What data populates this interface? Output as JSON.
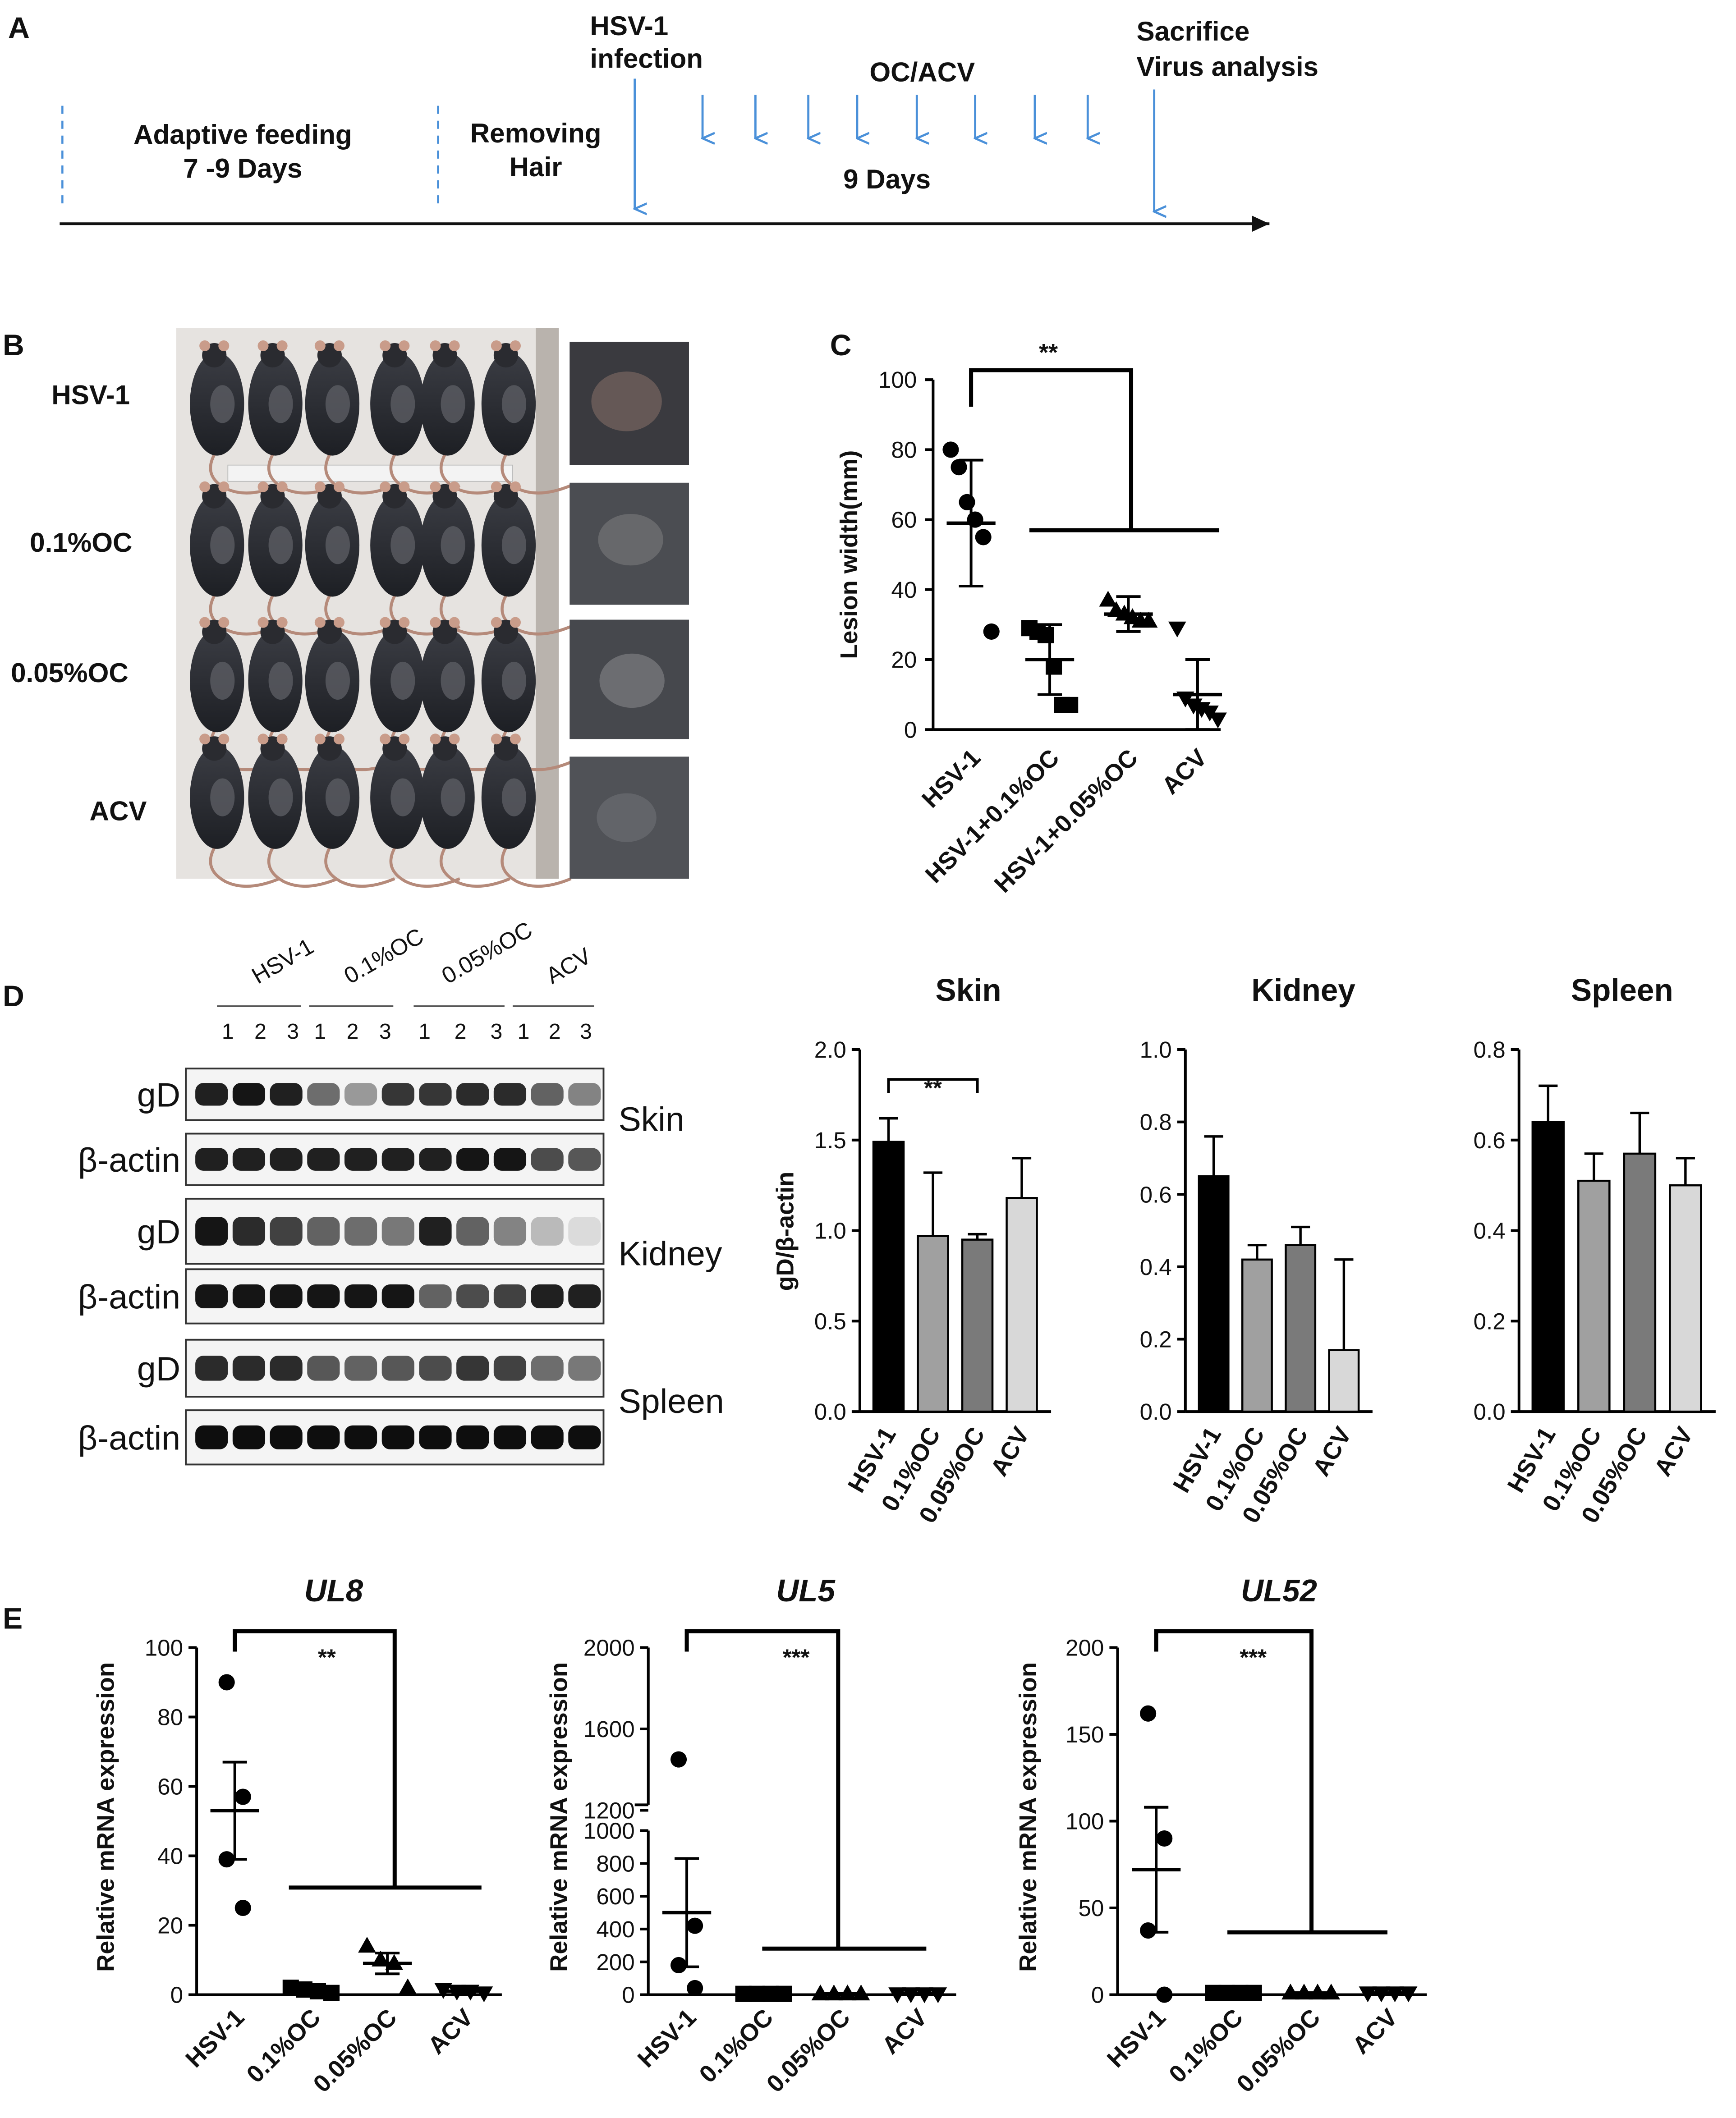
{
  "colors": {
    "accent_arrow": "#4a90d9",
    "bar_black": "#000000",
    "bar_dark_gray": "#7a7a7a",
    "bar_mid_gray": "#a0a0a0",
    "bar_light_gray": "#d8d8d8"
  },
  "panelA": {
    "label": "A",
    "adaptive": "Adaptive feeding",
    "adaptive_days": "7 -9 Days",
    "removing": "Removing",
    "hair": "Hair",
    "infection_1": "HSV-1",
    "infection_2": "infection",
    "treatment": "OC/ACV",
    "duration": "9  Days",
    "sacrifice": "Sacrifice",
    "analysis": "Virus analysis"
  },
  "panelB": {
    "label": "B",
    "groups": [
      "HSV-1",
      "0.1%OC",
      "0.05%OC",
      "ACV"
    ]
  },
  "panelD_blot": {
    "label": "D",
    "group_labels": [
      "HSV-1",
      "0.1%OC",
      "0.05%OC",
      "ACV"
    ],
    "lane_numbers": [
      "1",
      "2",
      "3"
    ],
    "row_labels": [
      "gD",
      "β-actin",
      "gD",
      "β-actin",
      "gD",
      "β-actin"
    ],
    "tissues": [
      "Skin",
      "Kidney",
      "Spleen"
    ]
  },
  "panelC_label": "C",
  "panelE_label": "E",
  "chart_data": [
    {
      "type": "scatter",
      "panel": "C",
      "ylabel": "Lesion width(mm)",
      "categories": [
        "HSV-1",
        "HSV-1+0.1%OC",
        "HSV-1+0.05%OC",
        "ACV"
      ],
      "ylim": [
        0,
        100
      ],
      "yticks": [
        "0",
        "20",
        "40",
        "60",
        "80",
        "100"
      ],
      "points": [
        [
          80,
          75,
          65,
          60,
          55,
          28
        ],
        [
          29,
          28,
          27,
          18,
          7,
          7
        ],
        [
          37,
          34,
          33,
          32,
          31,
          31
        ],
        [
          29,
          9,
          7,
          6,
          5,
          3
        ]
      ],
      "means": [
        59,
        20,
        33,
        10
      ],
      "sds": [
        18,
        10,
        5,
        10
      ],
      "significance": "**"
    },
    {
      "type": "bar",
      "panel": "D",
      "title": "Skin",
      "ylabel": "gD/β-actin",
      "categories": [
        "HSV-1",
        "0.1%OC",
        "0.05%OC",
        "ACV"
      ],
      "values": [
        1.49,
        0.97,
        0.95,
        1.18
      ],
      "errors": [
        0.13,
        0.35,
        0.03,
        0.22
      ],
      "ylim": [
        0,
        2.0
      ],
      "yticks": [
        "0.0",
        "0.5",
        "1.0",
        "1.5",
        "2.0"
      ],
      "significance": "**"
    },
    {
      "type": "bar",
      "panel": "D",
      "title": "Kidney",
      "ylabel": "",
      "categories": [
        "HSV-1",
        "0.1%OC",
        "0.05%OC",
        "ACV"
      ],
      "values": [
        0.65,
        0.42,
        0.46,
        0.17
      ],
      "errors": [
        0.11,
        0.04,
        0.05,
        0.25
      ],
      "ylim": [
        0,
        1.0
      ],
      "yticks": [
        "0.0",
        "0.2",
        "0.4",
        "0.6",
        "0.8",
        "1.0"
      ]
    },
    {
      "type": "bar",
      "panel": "D",
      "title": "Spleen",
      "ylabel": "",
      "categories": [
        "HSV-1",
        "0.1%OC",
        "0.05%OC",
        "ACV"
      ],
      "values": [
        0.64,
        0.51,
        0.57,
        0.5
      ],
      "errors": [
        0.08,
        0.06,
        0.09,
        0.06
      ],
      "ylim": [
        0,
        0.8
      ],
      "yticks": [
        "0.0",
        "0.2",
        "0.4",
        "0.6",
        "0.8"
      ]
    },
    {
      "type": "scatter",
      "panel": "E",
      "title": "UL8",
      "ylabel": "Relative mRNA expression",
      "categories": [
        "HSV-1",
        "0.1%OC",
        "0.05%OC",
        "ACV"
      ],
      "ylim": [
        0,
        100
      ],
      "yticks": [
        "0",
        "20",
        "40",
        "60",
        "80",
        "100"
      ],
      "points": [
        [
          90,
          57,
          39,
          25
        ],
        [
          2,
          1.5,
          1,
          0.5
        ],
        [
          14,
          10,
          9,
          2
        ],
        [
          1.5,
          1,
          1,
          0.5
        ]
      ],
      "means": [
        53,
        1,
        9,
        1
      ],
      "sems": [
        14,
        0.5,
        3,
        0.5
      ],
      "significance": "**"
    },
    {
      "type": "scatter",
      "panel": "E",
      "title": "UL5",
      "ylabel": "Relative mRNA expression",
      "categories": [
        "HSV-1",
        "0.1%OC",
        "0.05%OC",
        "ACV"
      ],
      "ylim": [
        0,
        2000
      ],
      "axis_break": [
        1000,
        1200
      ],
      "yticks": [
        "0",
        "200",
        "400",
        "600",
        "800",
        "1000",
        "1200",
        "1600",
        "2000"
      ],
      "points": [
        [
          1450,
          420,
          180,
          40
        ],
        [
          5,
          5,
          5,
          5
        ],
        [
          5,
          5,
          5,
          5
        ],
        [
          5,
          5,
          5,
          5
        ]
      ],
      "means": [
        500,
        5,
        5,
        5
      ],
      "sems": [
        330,
        0,
        0,
        0
      ],
      "significance": "***"
    },
    {
      "type": "scatter",
      "panel": "E",
      "title": "UL52",
      "ylabel": "Relative mRNA expression",
      "categories": [
        "HSV-1",
        "0.1%OC",
        "0.05%OC",
        "ACV"
      ],
      "ylim": [
        0,
        200
      ],
      "yticks": [
        "0",
        "50",
        "100",
        "150",
        "200"
      ],
      "points": [
        [
          162,
          90,
          37,
          0
        ],
        [
          1,
          1,
          1,
          1
        ],
        [
          1,
          1,
          1,
          1
        ],
        [
          1,
          1,
          1,
          1
        ]
      ],
      "means": [
        72,
        1,
        1,
        1
      ],
      "sems": [
        36,
        0,
        0,
        0
      ],
      "significance": "***"
    }
  ]
}
